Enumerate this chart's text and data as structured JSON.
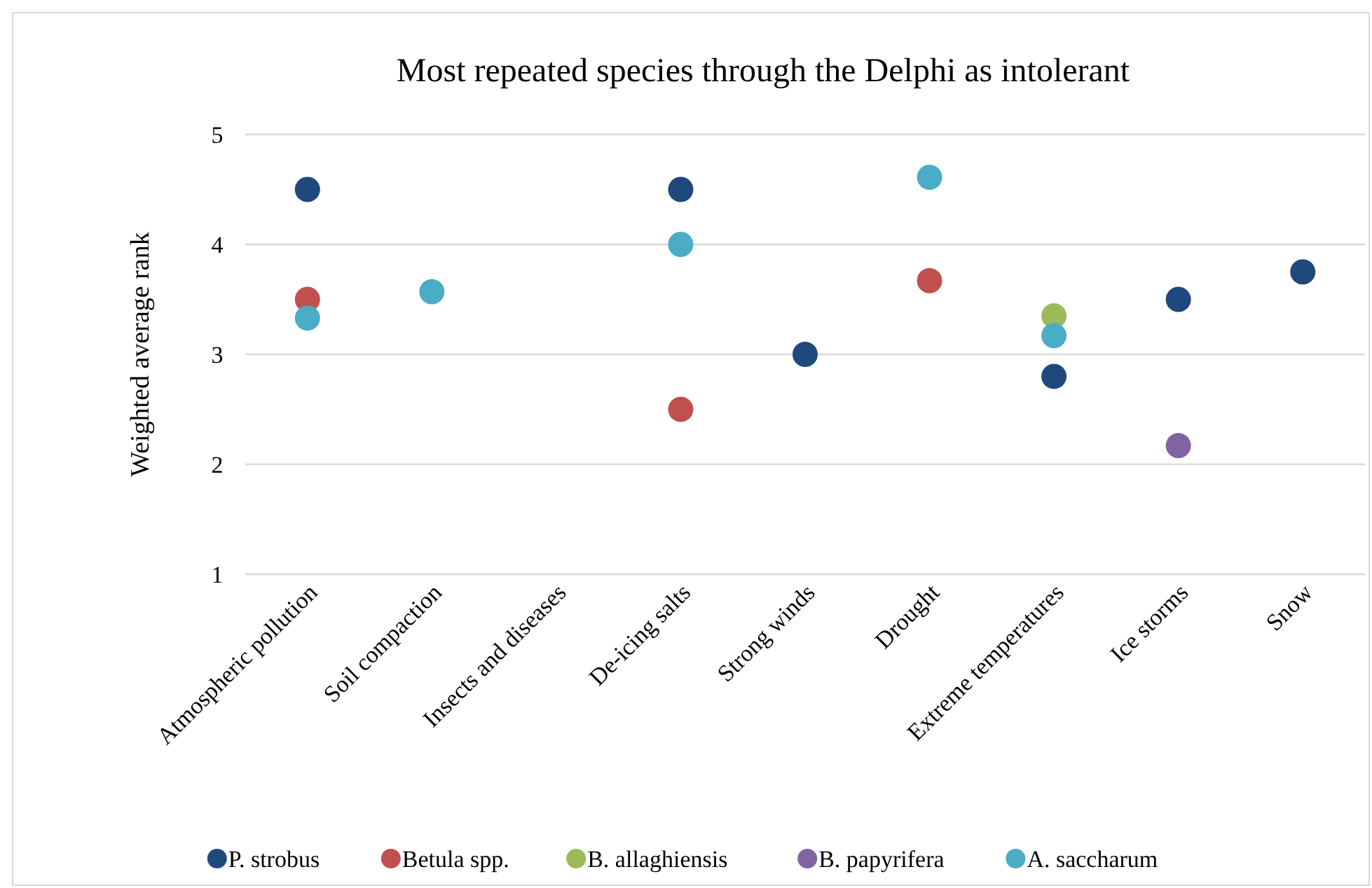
{
  "chart_data": {
    "type": "scatter",
    "title": "Most repeated species through the Delphi as intolerant",
    "ylabel": "Weighted average rank",
    "categories": [
      "Atmospheric pollution",
      "Soil compaction",
      "Insects and diseases",
      "De-icing salts",
      "Strong winds",
      "Drought",
      "Extreme temperatures",
      "Ice storms",
      "Snow"
    ],
    "series": [
      {
        "name": "P. strobus",
        "color": "#1f497d",
        "values": [
          4.5,
          null,
          null,
          4.5,
          3.0,
          null,
          2.8,
          3.5,
          3.75
        ]
      },
      {
        "name": "Betula spp.",
        "color": "#c0504d",
        "values": [
          3.5,
          null,
          null,
          2.5,
          null,
          3.67,
          null,
          null,
          null
        ]
      },
      {
        "name": "B. allaghiensis",
        "color": "#9bbb59",
        "values": [
          null,
          null,
          null,
          null,
          null,
          null,
          3.35,
          null,
          null
        ]
      },
      {
        "name": "B. papyrifera",
        "color": "#8064a2",
        "values": [
          null,
          null,
          null,
          null,
          null,
          null,
          null,
          2.17,
          null
        ]
      },
      {
        "name": "A. saccharum",
        "color": "#4bacc6",
        "values": [
          3.33,
          3.57,
          null,
          4.0,
          null,
          4.61,
          3.17,
          null,
          null
        ]
      }
    ],
    "ylim": [
      1,
      5
    ],
    "yticks": [
      1,
      2,
      3,
      4,
      5
    ],
    "grid": "y",
    "legend": "bottom",
    "marker": "circle"
  }
}
